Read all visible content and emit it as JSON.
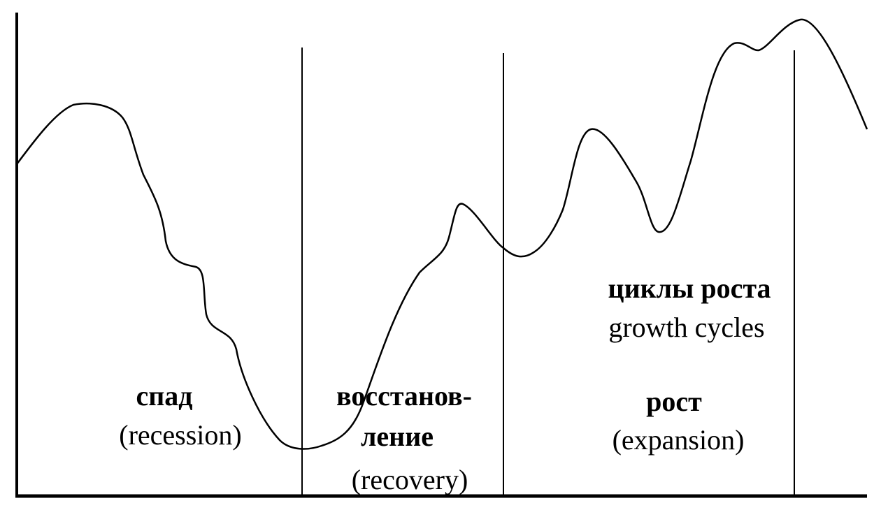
{
  "phases": [
    {
      "id": "recession",
      "ru": "спад",
      "en": "(recession)"
    },
    {
      "id": "recovery",
      "ru_line1": "восстанов-",
      "ru_line2": "ление",
      "en": "(recovery)"
    },
    {
      "id": "expansion",
      "ru": "рост",
      "en": "(expansion)"
    }
  ],
  "growth_cycles": {
    "ru": "циклы роста",
    "en": "growth cycles"
  },
  "colors": {
    "ink": "#000000",
    "background": "#ffffff"
  }
}
